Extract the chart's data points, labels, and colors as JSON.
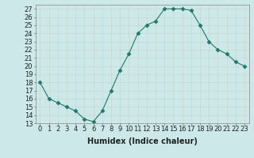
{
  "x": [
    0,
    1,
    2,
    3,
    4,
    5,
    6,
    7,
    8,
    9,
    10,
    11,
    12,
    13,
    14,
    15,
    16,
    17,
    18,
    19,
    20,
    21,
    22,
    23
  ],
  "y": [
    18,
    16,
    15.5,
    15,
    14.5,
    13.5,
    13.2,
    14.5,
    17,
    19.5,
    21.5,
    24,
    25,
    25.5,
    27,
    27,
    27,
    26.8,
    25,
    23,
    22,
    21.5,
    20.5,
    20
  ],
  "line_color": "#1a7a6e",
  "marker": "D",
  "marker_size": 2.5,
  "bg_color": "#cce8e8",
  "grid_color": "#b0d0d0",
  "xlabel": "Humidex (Indice chaleur)",
  "xlabel_fontsize": 7,
  "tick_fontsize": 6,
  "ylim": [
    13,
    27.5
  ],
  "yticks": [
    13,
    14,
    15,
    16,
    17,
    18,
    19,
    20,
    21,
    22,
    23,
    24,
    25,
    26,
    27
  ],
  "xticks": [
    0,
    1,
    2,
    3,
    4,
    5,
    6,
    7,
    8,
    9,
    10,
    11,
    12,
    13,
    14,
    15,
    16,
    17,
    18,
    19,
    20,
    21,
    22,
    23
  ],
  "xlim": [
    -0.5,
    23.5
  ]
}
